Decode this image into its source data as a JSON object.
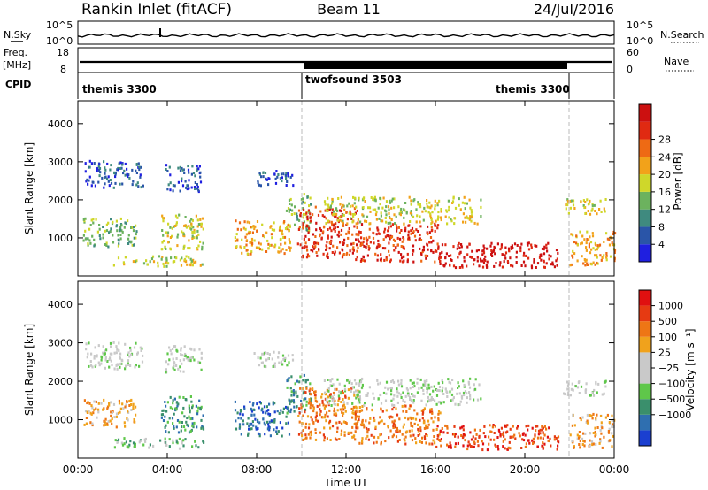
{
  "header": {
    "station": "Rankin Inlet (fitACF)",
    "beam": "Beam 11",
    "date": "24/Jul/2016"
  },
  "strips": {
    "nsky_label": "N.Sky",
    "nsky_ticks": [
      "10^5",
      "10^0"
    ],
    "nsearch_label": "N.Search",
    "nsearch_ticks": [
      "10^5",
      "10^0"
    ],
    "freq_label_1": "Freq.",
    "freq_label_2": "[MHz]",
    "freq_ticks": [
      "18",
      "8"
    ],
    "nave_label": "Nave",
    "nave_ticks": [
      "60",
      "0"
    ],
    "cpid_label": "CPID",
    "cpid_segments": [
      "themis 3300",
      "twofsound 3503",
      "themis 3300"
    ],
    "cpid_boundaries_hours": [
      10.0,
      22.0
    ]
  },
  "chart_data": [
    {
      "type": "heatmap",
      "title": "",
      "xlabel": "Time UT",
      "ylabel": "Slant Range [km]",
      "x_range_hours": [
        0,
        24
      ],
      "ylim": [
        0,
        4600
      ],
      "y_ticks": [
        "1000",
        "2000",
        "3000",
        "4000"
      ],
      "x_ticks": [
        "00:00",
        "04:00",
        "08:00",
        "12:00",
        "16:00",
        "20:00",
        "00:00"
      ],
      "colorbar_label": "Power [dB]",
      "colorbar_ticks": [
        "4",
        "8",
        "12",
        "16",
        "20",
        "24",
        "28"
      ],
      "colorbar_colors": [
        "#1f1fe0",
        "#2a55a8",
        "#3f8a7f",
        "#6cb25e",
        "#cfd72a",
        "#f2a21a",
        "#ee6a14",
        "#e02a12",
        "#cc1010"
      ],
      "echo_regions_km": [
        {
          "t0": 0.3,
          "t1": 2.9,
          "r0": 2350,
          "r1": 3050,
          "level": 1
        },
        {
          "t0": 3.9,
          "t1": 5.5,
          "r0": 2250,
          "r1": 2950,
          "level": 1
        },
        {
          "t0": 7.8,
          "t1": 9.6,
          "r0": 2400,
          "r1": 2800,
          "level": 1
        },
        {
          "t0": 0.2,
          "t1": 2.6,
          "r0": 800,
          "r1": 1550,
          "level": 3
        },
        {
          "t0": 3.7,
          "t1": 5.6,
          "r0": 700,
          "r1": 1650,
          "level": 4
        },
        {
          "t0": 1.5,
          "t1": 5.6,
          "r0": 280,
          "r1": 550,
          "level": 4
        },
        {
          "t0": 7.0,
          "t1": 9.5,
          "r0": 600,
          "r1": 1500,
          "level": 5
        },
        {
          "t0": 9.3,
          "t1": 10.4,
          "r0": 1200,
          "r1": 2200,
          "level": 3
        },
        {
          "t0": 9.8,
          "t1": 12.5,
          "r0": 500,
          "r1": 1850,
          "level": 7
        },
        {
          "t0": 12.3,
          "t1": 16.2,
          "r0": 400,
          "r1": 1400,
          "level": 7
        },
        {
          "t0": 16.0,
          "t1": 21.5,
          "r0": 250,
          "r1": 900,
          "level": 8
        },
        {
          "t0": 11.0,
          "t1": 18.0,
          "r0": 1400,
          "r1": 2100,
          "level": 4
        },
        {
          "t0": 21.7,
          "t1": 23.6,
          "r0": 1650,
          "r1": 2050,
          "level": 4
        },
        {
          "t0": 22.0,
          "t1": 24.0,
          "r0": 300,
          "r1": 1200,
          "level": 5
        }
      ]
    },
    {
      "type": "heatmap",
      "title": "",
      "xlabel": "Time UT",
      "ylabel": "Slant Range [km]",
      "x_range_hours": [
        0,
        24
      ],
      "ylim": [
        0,
        4600
      ],
      "y_ticks": [
        "1000",
        "2000",
        "3000",
        "4000"
      ],
      "x_ticks": [
        "00:00",
        "04:00",
        "08:00",
        "12:00",
        "16:00",
        "20:00",
        "00:00"
      ],
      "colorbar_label": "Velocity [m s⁻¹]",
      "colorbar_ticks": [
        "1000",
        "500",
        "100",
        "25",
        "−25",
        "−100",
        "−500",
        "−1000"
      ],
      "colorbar_colors": [
        "#1b3fd0",
        "#2f6fb0",
        "#3a8f6c",
        "#5fc74a",
        "#c9c9c9",
        "#c9c9c9",
        "#f0a21c",
        "#ee7615",
        "#e63a12",
        "#e01010"
      ],
      "echo_regions_km": [
        {
          "t0": 0.3,
          "t1": 2.9,
          "r0": 2350,
          "r1": 3050,
          "level": 4
        },
        {
          "t0": 3.9,
          "t1": 5.5,
          "r0": 2250,
          "r1": 2950,
          "level": 4
        },
        {
          "t0": 7.8,
          "t1": 9.6,
          "r0": 2400,
          "r1": 2800,
          "level": 4
        },
        {
          "t0": 0.2,
          "t1": 2.6,
          "r0": 800,
          "r1": 1550,
          "level": 6
        },
        {
          "t0": 3.7,
          "t1": 5.6,
          "r0": 700,
          "r1": 1650,
          "level": 2
        },
        {
          "t0": 1.5,
          "t1": 5.6,
          "r0": 280,
          "r1": 550,
          "level": 3
        },
        {
          "t0": 7.0,
          "t1": 9.5,
          "r0": 600,
          "r1": 1500,
          "level": 1
        },
        {
          "t0": 9.3,
          "t1": 10.4,
          "r0": 1200,
          "r1": 2200,
          "level": 2
        },
        {
          "t0": 9.8,
          "t1": 12.5,
          "r0": 500,
          "r1": 1850,
          "level": 7
        },
        {
          "t0": 12.3,
          "t1": 16.2,
          "r0": 400,
          "r1": 1400,
          "level": 7
        },
        {
          "t0": 16.0,
          "t1": 21.5,
          "r0": 250,
          "r1": 900,
          "level": 8
        },
        {
          "t0": 11.0,
          "t1": 18.0,
          "r0": 1400,
          "r1": 2100,
          "level": 4
        },
        {
          "t0": 21.7,
          "t1": 23.6,
          "r0": 1650,
          "r1": 2050,
          "level": 4
        },
        {
          "t0": 22.0,
          "t1": 24.0,
          "r0": 300,
          "r1": 1200,
          "level": 6
        }
      ]
    }
  ]
}
